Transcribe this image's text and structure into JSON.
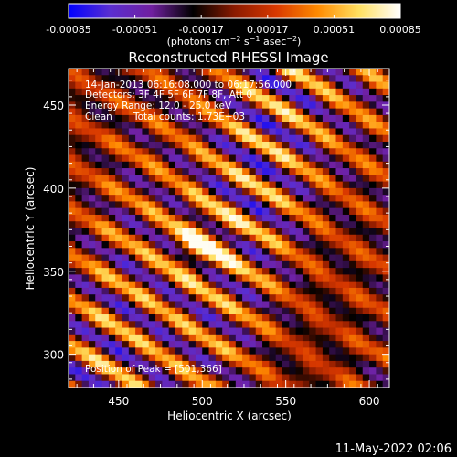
{
  "chart_data": {
    "type": "heatmap",
    "title": "Reconstructed RHESSI Image",
    "xlabel": "Heliocentric X (arcsec)",
    "ylabel": "Heliocentric Y (arcsec)",
    "xlim": [
      420,
      612
    ],
    "ylim": [
      280,
      472
    ],
    "x_ticks": [
      450,
      500,
      550,
      600
    ],
    "y_ticks": [
      300,
      350,
      400,
      450
    ],
    "colorbar": {
      "ticks": [
        "-0.00085",
        "-0.00051",
        "-0.00017",
        "0.00017",
        "0.00051",
        "0.00085"
      ],
      "range": [
        -0.00085,
        0.00085
      ],
      "colormap": [
        "#0000ff",
        "#5a2ed0",
        "#7020a0",
        "#000000",
        "#8a1a00",
        "#d83800",
        "#ff8a00",
        "#ffe060",
        "#ffffff"
      ]
    },
    "peak": {
      "x": 501,
      "y": 366
    },
    "annotations": {
      "time": "14-Jan-2013 06:16:08.000 to 06:17:56.000",
      "detectors": "Detectors: 3F 4F 5F 6F 7F 8F, Att 0",
      "energy": "Energy Range: 12.0 - 25.0 keV",
      "clean": "Clean",
      "counts": "Total counts: 1.73E+03",
      "peak_prefix": "Position of Peak = [",
      "peak_suffix": "]"
    },
    "footer_date": "11-May-2022 02:06"
  }
}
